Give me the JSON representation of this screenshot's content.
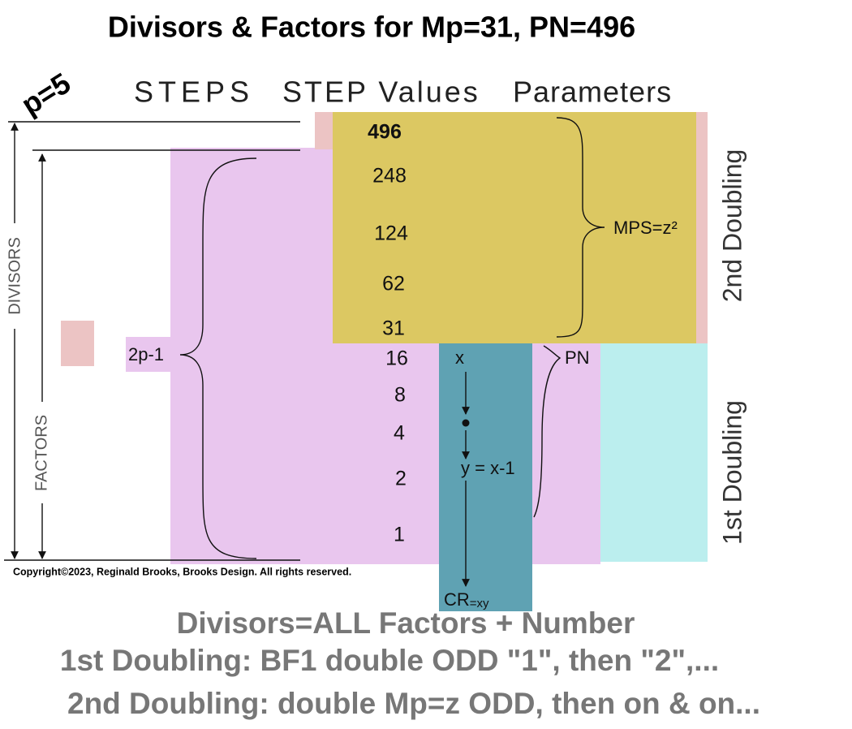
{
  "title": "Divisors & Factors for Mp=31, PN=496",
  "p_label": "p=5",
  "headers": [
    "STEPS",
    "STEP Values",
    "Parameters"
  ],
  "steps": {
    "values": [
      496,
      248,
      124,
      62,
      31,
      16,
      8,
      4,
      2,
      1
    ]
  },
  "labels": {
    "mps": "MPS=z²",
    "two_p_minus_1": "2p-1",
    "pn": "PN",
    "x": "x",
    "y": "y = x-1",
    "cr": "CR",
    "cr_sub": "=xy",
    "divisors": "DIVISORS",
    "factors": "FACTORS",
    "second_doubling": "2nd Doubling",
    "first_doubling": "1st Doubling"
  },
  "copyright": "Copyright©2023, Reginald Brooks, Brooks Design. All rights reserved.",
  "footer": [
    "Divisors=ALL Factors + Number",
    "1st Doubling: BF1 double ODD \"1\", then \"2\",...",
    "2nd Doubling: double Mp=z ODD, then on & on..."
  ]
}
